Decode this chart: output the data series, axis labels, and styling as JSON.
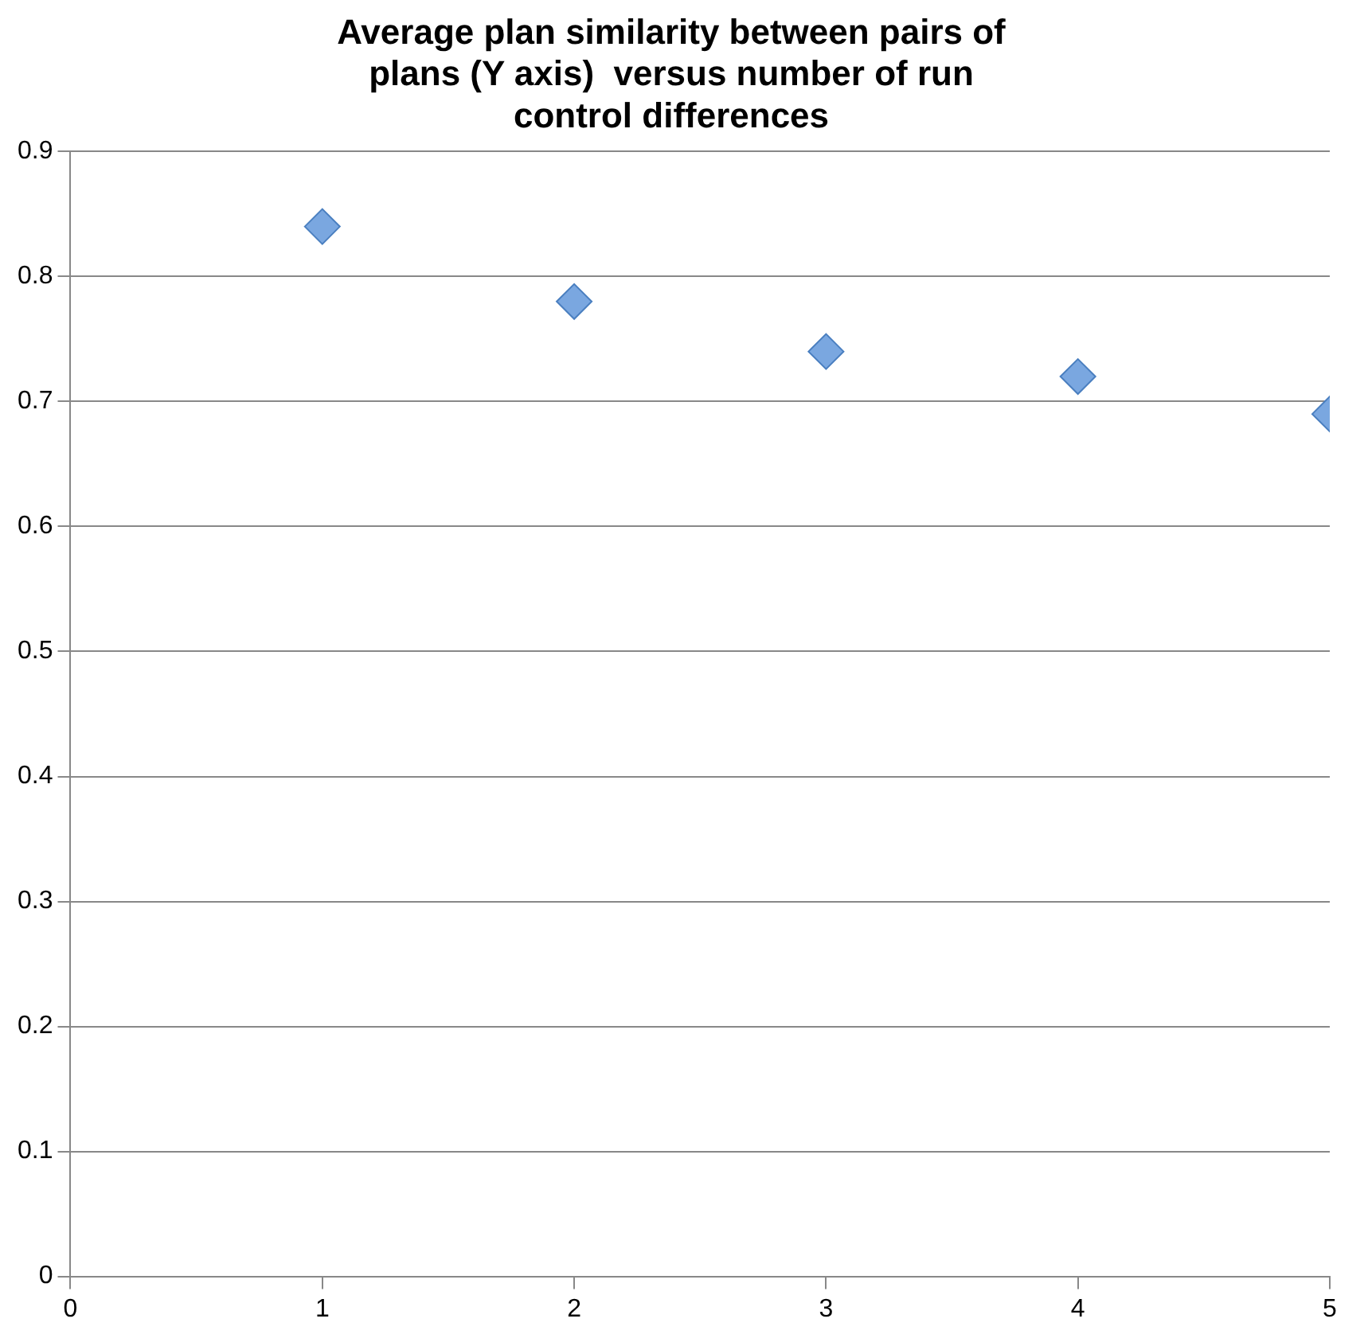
{
  "chart_data": {
    "type": "scatter",
    "title": "Average plan similarity between pairs of plans (Y axis)  versus number of run control differences",
    "x": [
      1,
      2,
      3,
      4,
      5
    ],
    "series": [
      {
        "color": "#7aa7e0",
        "values": [
          0.84,
          0.78,
          0.74,
          0.72,
          0.69
        ]
      }
    ],
    "xlim": [
      0,
      5
    ],
    "xticks": [
      0,
      1,
      2,
      3,
      4,
      5
    ],
    "ylim": [
      0,
      0.9
    ],
    "yticks": [
      0,
      0.1,
      0.2,
      0.3,
      0.4,
      0.5,
      0.6,
      0.7,
      0.8,
      0.9
    ],
    "grid": "y",
    "legend": false,
    "marker": "diamond"
  }
}
